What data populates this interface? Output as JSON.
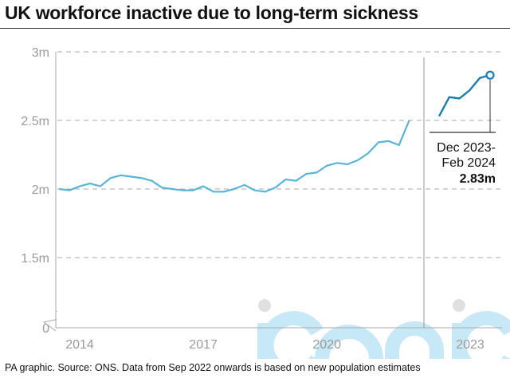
{
  "title": "UK workforce inactive due to long-term sickness",
  "footer": "PA graphic. Source: ONS. Data from Sep 2022 onwards is based on new population estimates",
  "watermark": "iconic",
  "chart_data": [
    {
      "type": "line",
      "title": "UK workforce inactive due to long-term sickness",
      "ylim": [
        0,
        3
      ],
      "y_unit": "millions",
      "y_axis_break": true,
      "yticks": [
        0,
        1.5,
        2,
        2.5,
        3
      ],
      "ytick_labels": [
        "0",
        "1.5m",
        "2m",
        "2.5m",
        "3m"
      ],
      "xticks": [
        2014,
        2017,
        2020
      ],
      "xtick_labels": [
        "2014",
        "2017",
        "2020"
      ],
      "grid": "horizontal-dashed",
      "color": "#5ab4d6",
      "x": [
        2013.5,
        2013.75,
        2014.0,
        2014.25,
        2014.5,
        2014.75,
        2015.0,
        2015.25,
        2015.5,
        2015.75,
        2016.0,
        2016.25,
        2016.5,
        2016.75,
        2017.0,
        2017.25,
        2017.5,
        2017.75,
        2018.0,
        2018.25,
        2018.5,
        2018.75,
        2019.0,
        2019.25,
        2019.5,
        2019.75,
        2020.0,
        2020.25,
        2020.5,
        2020.75,
        2021.0,
        2021.25,
        2021.5,
        2021.75,
        2022.0
      ],
      "values": [
        2.0,
        1.99,
        2.02,
        2.04,
        2.02,
        2.08,
        2.1,
        2.09,
        2.08,
        2.06,
        2.01,
        2.0,
        1.99,
        1.99,
        2.02,
        1.98,
        1.98,
        2.0,
        2.03,
        1.99,
        1.98,
        2.01,
        2.07,
        2.06,
        2.11,
        2.12,
        2.17,
        2.19,
        2.18,
        2.21,
        2.26,
        2.34,
        2.35,
        2.32,
        2.5
      ]
    },
    {
      "type": "line",
      "ylim": [
        0,
        3
      ],
      "y_unit": "millions",
      "xticks": [
        2023
      ],
      "xtick_labels": [
        "2023"
      ],
      "color": "#1b7fac",
      "x": [
        2022.75,
        2023.0,
        2023.25,
        2023.5,
        2023.75,
        2024.0
      ],
      "values": [
        2.53,
        2.67,
        2.66,
        2.72,
        2.81,
        2.83
      ],
      "annotation": {
        "period_line1": "Dec 2023-",
        "period_line2": "Feb 2024",
        "value": "2.83m"
      }
    }
  ]
}
